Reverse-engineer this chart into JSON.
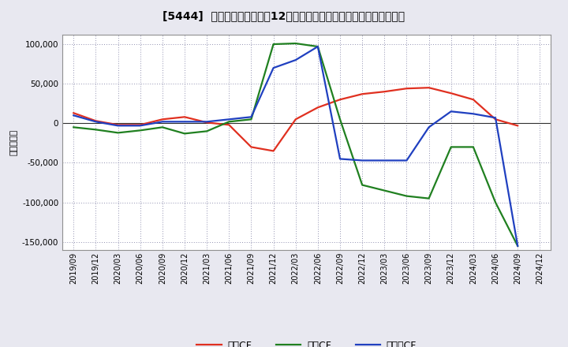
{
  "title": "[5444]  キャッシュフローの12か月移動合計の対前年同期増減額の推移",
  "ylabel": "（百万円）",
  "x_labels": [
    "2019/09",
    "2019/12",
    "2020/03",
    "2020/06",
    "2020/09",
    "2020/12",
    "2021/03",
    "2021/06",
    "2021/09",
    "2021/12",
    "2022/03",
    "2022/06",
    "2022/09",
    "2022/12",
    "2023/03",
    "2023/06",
    "2023/09",
    "2023/12",
    "2024/03",
    "2024/06",
    "2024/09",
    "2024/12"
  ],
  "operating_cf": [
    13000,
    3000,
    -2000,
    -2000,
    5000,
    8000,
    1000,
    -2000,
    -30000,
    -35000,
    5000,
    20000,
    30000,
    37000,
    40000,
    44000,
    45000,
    38000,
    30000,
    5000,
    -3000,
    null
  ],
  "investing_cf": [
    -5000,
    -8000,
    -12000,
    -9000,
    -5000,
    -13000,
    -10000,
    2000,
    5000,
    100000,
    101000,
    97000,
    5000,
    -78000,
    -85000,
    -92000,
    -95000,
    -30000,
    -30000,
    -100000,
    -155000,
    null
  ],
  "free_cf": [
    10000,
    2000,
    -3000,
    -3000,
    2000,
    2000,
    2000,
    5000,
    8000,
    70000,
    80000,
    97000,
    -45000,
    -47000,
    -47000,
    -47000,
    -5000,
    15000,
    12000,
    7000,
    -155000,
    null
  ],
  "ylim": [
    -160000,
    112000
  ],
  "yticks": [
    -150000,
    -100000,
    -50000,
    0,
    50000,
    100000
  ],
  "colors": {
    "operating": "#e03020",
    "investing": "#208020",
    "free": "#2040c0"
  },
  "bg_color": "#e8e8f0",
  "plot_bg": "#ffffff",
  "grid_color": "#9090b0",
  "linewidth": 1.6,
  "legend_labels": [
    "営業CF",
    "投賁CF",
    "フリーCF"
  ]
}
